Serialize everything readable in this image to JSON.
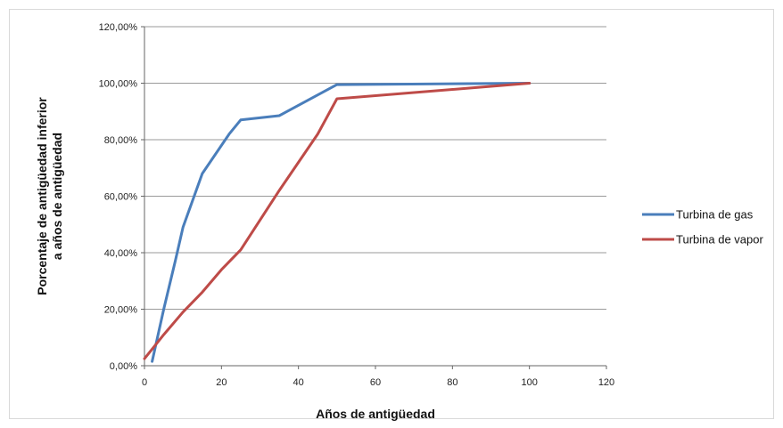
{
  "chart_data": {
    "type": "line",
    "xlabel": "Años de antigüedad",
    "ylabel": "Porcentaje de antigüedad inferior a años de antigüedad",
    "ylabel_lines": [
      "Porcentaje de antigüedad inferior",
      "a años de antigüedad"
    ],
    "xlim": [
      0,
      120
    ],
    "ylim": [
      0,
      120
    ],
    "x_ticks": [
      0,
      20,
      40,
      60,
      80,
      100,
      120
    ],
    "x_tick_labels": [
      "0",
      "20",
      "40",
      "60",
      "80",
      "100",
      "120"
    ],
    "y_ticks": [
      0,
      20,
      40,
      60,
      80,
      100,
      120
    ],
    "y_tick_labels": [
      "0,00%",
      "20,00%",
      "40,00%",
      "60,00%",
      "80,00%",
      "100,00%",
      "120,00%"
    ],
    "grid": "horizontal",
    "legend_position": "right",
    "series": [
      {
        "name": "Turbina de gas",
        "color": "#4a7ebb",
        "points": [
          [
            2,
            1.5
          ],
          [
            5,
            20
          ],
          [
            8,
            37
          ],
          [
            10,
            49
          ],
          [
            15,
            68
          ],
          [
            22,
            82
          ],
          [
            25,
            87
          ],
          [
            35,
            88.5
          ],
          [
            50,
            99.5
          ],
          [
            100,
            100
          ]
        ]
      },
      {
        "name": "Turbina de vapor",
        "color": "#be4b48",
        "points": [
          [
            0,
            2.5
          ],
          [
            5,
            11
          ],
          [
            10,
            19
          ],
          [
            15,
            26
          ],
          [
            20,
            34
          ],
          [
            25,
            41
          ],
          [
            35,
            62
          ],
          [
            45,
            82
          ],
          [
            50,
            94.5
          ],
          [
            100,
            100
          ]
        ]
      }
    ]
  }
}
